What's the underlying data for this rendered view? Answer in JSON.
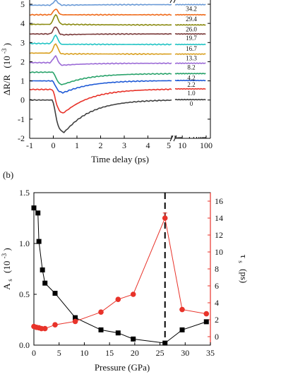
{
  "chart_data": [
    {
      "type": "line",
      "panel_label": "",
      "xlabel": "Time delay (ps)",
      "ylabel_parts": {
        "main": "ΔR/R",
        "unit_base": "(10",
        "unit_exp": "-3",
        "unit_close": ")"
      },
      "x_segments": [
        {
          "range": [
            -1,
            5
          ],
          "ticks": [
            -1,
            0,
            1,
            2,
            3,
            4,
            5
          ]
        },
        {
          "range": [
            5,
            100
          ],
          "scale": "log",
          "ticks": [
            5,
            10,
            100
          ]
        }
      ],
      "ylim": [
        -2,
        5
      ],
      "yticks": [
        -2,
        -1,
        0,
        1,
        2,
        3,
        4,
        5
      ],
      "series": [
        {
          "name": "0",
          "color": "#404040",
          "offset": 0.0,
          "dip": -1.75,
          "peak": 0.0,
          "t0": 0.45,
          "tail": 0.02
        },
        {
          "name": "1.0",
          "color": "#e8332a",
          "offset": 0.55,
          "dip": -0.75,
          "peak": 0.0,
          "t0": 0.4,
          "tail": 0.58
        },
        {
          "name": "2.2",
          "color": "#1f5ad6",
          "offset": 1.0,
          "dip": 0.35,
          "peak": 0.0,
          "t0": 0.4,
          "tail": 1.02
        },
        {
          "name": "4.2",
          "color": "#2aa36b",
          "offset": 1.45,
          "dip": 0.75,
          "peak": 1.5,
          "t0": 0.35,
          "tail": 1.38
        },
        {
          "name": "8.2",
          "color": "#9b6ad6",
          "offset": 1.95,
          "dip": 1.8,
          "peak": 2.35,
          "t0": 0.3,
          "tail": 1.92
        },
        {
          "name": "13.3",
          "color": "#d9a020",
          "offset": 2.45,
          "dip": 2.4,
          "peak": 2.95,
          "t0": 0.3,
          "tail": 2.4
        },
        {
          "name": "16.7",
          "color": "#22c4c4",
          "offset": 2.95,
          "dip": 2.9,
          "peak": 3.4,
          "t0": 0.3,
          "tail": 2.9
        },
        {
          "name": "19.7",
          "color": "#7a3a3a",
          "offset": 3.45,
          "dip": 3.4,
          "peak": 3.85,
          "t0": 0.3,
          "tail": 3.45
        },
        {
          "name": "26.0",
          "color": "#8a8a10",
          "offset": 3.95,
          "dip": 3.95,
          "peak": 4.45,
          "t0": 0.3,
          "tail": 3.92
        },
        {
          "name": "29.4",
          "color": "#ef6a1a",
          "offset": 4.45,
          "dip": 4.45,
          "peak": 4.75,
          "t0": 0.3,
          "tail": 4.45
        },
        {
          "name": "34.2",
          "color": "#6a9ad6",
          "offset": 4.95,
          "dip": 4.95,
          "peak": 5.2,
          "t0": 0.3,
          "tail": 4.98
        }
      ]
    },
    {
      "type": "scatter",
      "panel_label": "(b)",
      "xlabel": "Pressure (GPa)",
      "xlim": [
        0,
        35
      ],
      "xticks": [
        0,
        5,
        10,
        15,
        20,
        25,
        30,
        35
      ],
      "left_axis": {
        "label_main": "A",
        "label_sub": "s",
        "unit_base": "(10",
        "unit_exp": "-3",
        "unit_close": ")",
        "ylim": [
          0.0,
          1.5
        ],
        "yticks": [
          "0.0",
          "0.5",
          "1.0",
          "1.5"
        ],
        "color": "#000000"
      },
      "right_axis": {
        "label_main": "τ",
        "label_sub": "s",
        "unit": "(ps)",
        "ylim": [
          -1,
          17
        ],
        "yticks": [
          0,
          2,
          4,
          6,
          8,
          10,
          12,
          14,
          16
        ],
        "color": "#e8332a"
      },
      "vline_x": 26.0,
      "series": [
        {
          "name": "A_s",
          "axis": "left",
          "marker": "square",
          "color": "#000000",
          "x": [
            0,
            0.8,
            1.0,
            1.7,
            2.2,
            4.2,
            8.2,
            13.3,
            16.7,
            19.7,
            26.0,
            29.4,
            34.2
          ],
          "y": [
            1.35,
            1.3,
            1.02,
            0.74,
            0.61,
            0.51,
            0.27,
            0.15,
            0.12,
            0.06,
            0.02,
            0.15,
            0.23
          ]
        },
        {
          "name": "tau_s",
          "axis": "right",
          "marker": "circle",
          "color": "#e8332a",
          "x": [
            0,
            0.5,
            1.0,
            1.5,
            2.2,
            4.2,
            8.2,
            13.3,
            16.7,
            19.7,
            26.0,
            29.4,
            34.2
          ],
          "y": [
            1.2,
            1.1,
            1.05,
            0.95,
            0.95,
            1.4,
            1.8,
            2.9,
            4.4,
            5.0,
            14.0,
            3.2,
            2.7
          ],
          "error_last_high": {
            "x": 26.0,
            "y": 14.0,
            "err": 0.6
          }
        }
      ]
    }
  ]
}
